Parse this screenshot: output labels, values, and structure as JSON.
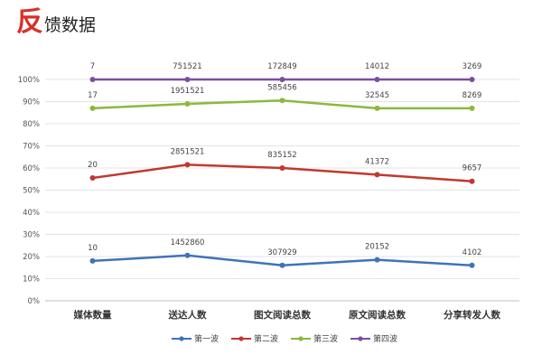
{
  "header": {
    "title_first": "反",
    "title_rest": "馈数据"
  },
  "chart_data": {
    "type": "line",
    "categories": [
      "媒体数量",
      "送达人数",
      "图文阅读总数",
      "原文阅读总数",
      "分享转发人数"
    ],
    "yticks": [
      "0%",
      "10%",
      "20%",
      "30%",
      "40%",
      "50%",
      "60%",
      "70%",
      "80%",
      "90%",
      "100%"
    ],
    "ylim": [
      0,
      100
    ],
    "grid": true,
    "legend_position": "bottom",
    "series": [
      {
        "name": "第一波",
        "color": "#3f73b8",
        "values": [
          18,
          20.5,
          16,
          18.5,
          16
        ],
        "labels": [
          "10",
          "1452860",
          "307929",
          "20152",
          "4102"
        ]
      },
      {
        "name": "第二波",
        "color": "#c0392f",
        "values": [
          55.5,
          61.5,
          60,
          57,
          54
        ],
        "labels": [
          "20",
          "2851521",
          "835152",
          "41372",
          "9657"
        ]
      },
      {
        "name": "第三波",
        "color": "#8cb83c",
        "values": [
          87,
          89,
          90.5,
          87,
          87
        ],
        "labels": [
          "17",
          "1951521",
          "585456",
          "32545",
          "8269"
        ]
      },
      {
        "name": "第四波",
        "color": "#7b4fa0",
        "values": [
          100,
          100,
          100,
          100,
          100
        ],
        "labels": [
          "7",
          "751521",
          "172849",
          "14012",
          "3269"
        ]
      }
    ]
  }
}
